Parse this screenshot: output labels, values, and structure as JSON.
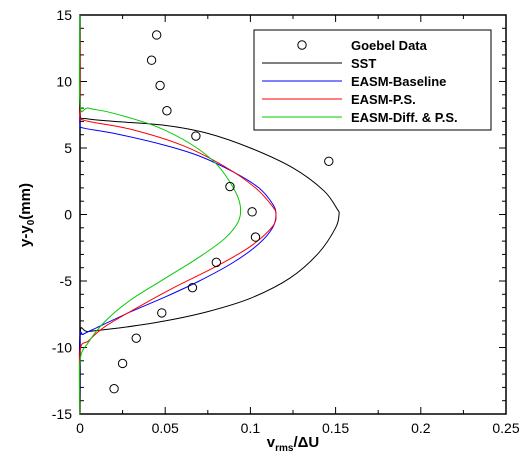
{
  "chart_data": {
    "type": "line",
    "title": "",
    "xlabel": {
      "main": "v",
      "sub": "rms",
      "rest": "/ΔU"
    },
    "ylabel": {
      "main": "y-y",
      "sub": "0",
      "rest": "(mm)"
    },
    "xlim": [
      0,
      0.25
    ],
    "ylim": [
      -15,
      15
    ],
    "xticks": [
      0,
      0.05,
      0.1,
      0.15,
      0.2,
      0.25
    ],
    "xtick_labels": [
      "0",
      "0.05",
      "0.1",
      "0.15",
      "0.2",
      "0.25"
    ],
    "yticks": [
      -15,
      -10,
      -5,
      0,
      5,
      10,
      15
    ],
    "ytick_labels": [
      "-15",
      "-10",
      "-5",
      "0",
      "5",
      "10",
      "15"
    ],
    "grid": false,
    "legend_position": "top-right",
    "scatter": {
      "name": "Goebel Data",
      "color": "#000000",
      "marker": "open-circle",
      "points": [
        [
          0.045,
          13.5
        ],
        [
          0.042,
          11.6
        ],
        [
          0.047,
          9.7
        ],
        [
          0.051,
          7.8
        ],
        [
          0.068,
          5.9
        ],
        [
          0.146,
          4.0
        ],
        [
          0.088,
          2.1
        ],
        [
          0.101,
          0.2
        ],
        [
          0.103,
          -1.7
        ],
        [
          0.08,
          -3.6
        ],
        [
          0.066,
          -5.5
        ],
        [
          0.048,
          -7.4
        ],
        [
          0.033,
          -9.3
        ],
        [
          0.025,
          -11.2
        ],
        [
          0.02,
          -13.1
        ]
      ]
    },
    "series": [
      {
        "name": "SST",
        "color": "#000000",
        "points": [
          [
            0,
            15
          ],
          [
            0,
            10
          ],
          [
            0,
            7.5
          ],
          [
            0.004,
            7.2
          ],
          [
            0.02,
            7.0
          ],
          [
            0.05,
            6.7
          ],
          [
            0.075,
            6.1
          ],
          [
            0.1,
            5.0
          ],
          [
            0.125,
            3.5
          ],
          [
            0.143,
            1.8
          ],
          [
            0.151,
            0.4
          ],
          [
            0.152,
            0
          ],
          [
            0.15,
            -1.0
          ],
          [
            0.14,
            -2.9
          ],
          [
            0.123,
            -4.8
          ],
          [
            0.1,
            -6.3
          ],
          [
            0.075,
            -7.3
          ],
          [
            0.05,
            -8.0
          ],
          [
            0.025,
            -8.5
          ],
          [
            0.005,
            -8.8
          ],
          [
            0,
            -9.0
          ],
          [
            0,
            -15
          ]
        ]
      },
      {
        "name": "EASM-Baseline",
        "color": "#0000ff",
        "points": [
          [
            0,
            15
          ],
          [
            0,
            8
          ],
          [
            0,
            6.8
          ],
          [
            0.002,
            6.5
          ],
          [
            0.02,
            6.1
          ],
          [
            0.05,
            5.2
          ],
          [
            0.07,
            4.4
          ],
          [
            0.09,
            3.2
          ],
          [
            0.105,
            2.0
          ],
          [
            0.113,
            0.8
          ],
          [
            0.115,
            0
          ],
          [
            0.113,
            -1.0
          ],
          [
            0.105,
            -2.2
          ],
          [
            0.09,
            -3.6
          ],
          [
            0.07,
            -5.0
          ],
          [
            0.05,
            -6.2
          ],
          [
            0.03,
            -7.3
          ],
          [
            0.01,
            -8.5
          ],
          [
            0.002,
            -9.0
          ],
          [
            0,
            -9.3
          ],
          [
            0,
            -15
          ]
        ]
      },
      {
        "name": "EASM-P.S.",
        "color": "#ff0000",
        "points": [
          [
            0,
            15
          ],
          [
            0,
            8
          ],
          [
            0,
            7.3
          ],
          [
            0.005,
            7.0
          ],
          [
            0.03,
            6.4
          ],
          [
            0.06,
            5.2
          ],
          [
            0.085,
            3.6
          ],
          [
            0.103,
            2.0
          ],
          [
            0.113,
            0.6
          ],
          [
            0.115,
            0
          ],
          [
            0.113,
            -0.9
          ],
          [
            0.1,
            -2.4
          ],
          [
            0.08,
            -3.9
          ],
          [
            0.055,
            -5.5
          ],
          [
            0.035,
            -6.9
          ],
          [
            0.015,
            -8.4
          ],
          [
            0.005,
            -9.5
          ],
          [
            0,
            -10.3
          ],
          [
            0,
            -15
          ]
        ]
      },
      {
        "name": "EASM-Diff. & P.S.",
        "color": "#00cc00",
        "points": [
          [
            0,
            15
          ],
          [
            0,
            8.3
          ],
          [
            0.005,
            8.0
          ],
          [
            0.02,
            7.6
          ],
          [
            0.045,
            6.6
          ],
          [
            0.065,
            5.3
          ],
          [
            0.08,
            3.8
          ],
          [
            0.09,
            2.0
          ],
          [
            0.094,
            0.7
          ],
          [
            0.093,
            -0.5
          ],
          [
            0.085,
            -1.8
          ],
          [
            0.07,
            -3.2
          ],
          [
            0.05,
            -4.8
          ],
          [
            0.03,
            -6.4
          ],
          [
            0.015,
            -8.0
          ],
          [
            0.005,
            -9.6
          ],
          [
            0,
            -11.0
          ],
          [
            0,
            -15
          ]
        ]
      }
    ]
  }
}
